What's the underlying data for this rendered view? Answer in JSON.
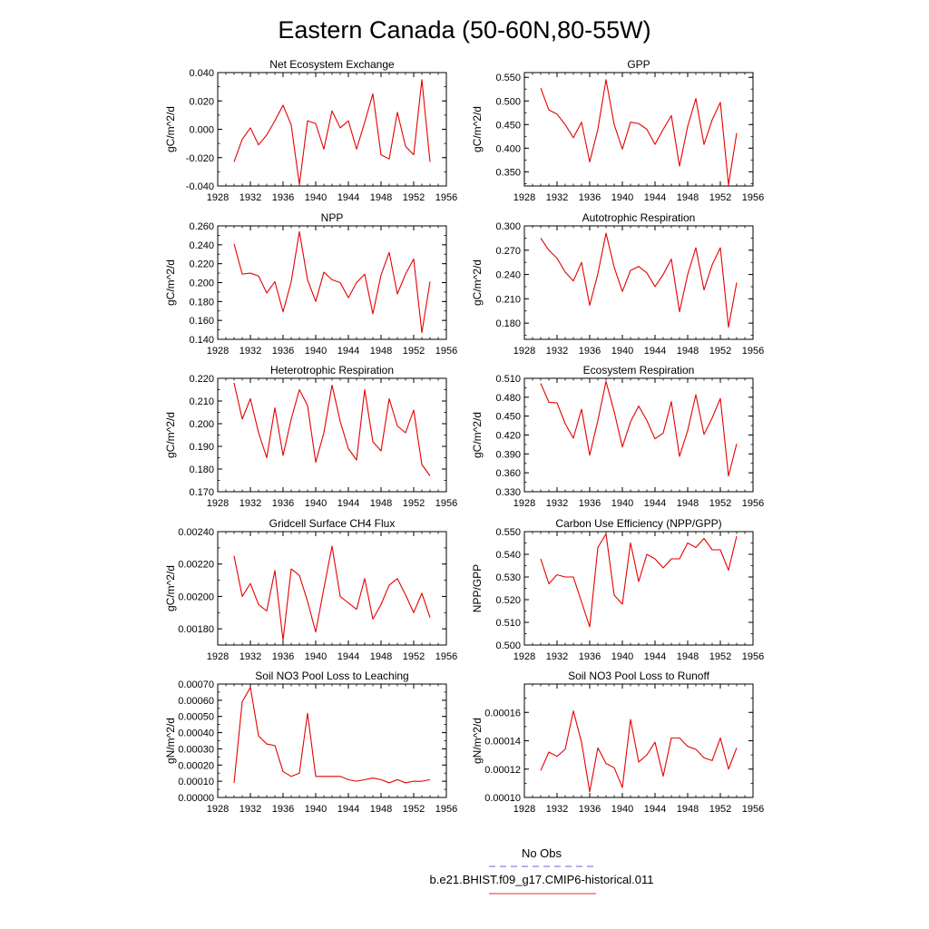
{
  "title": "Eastern Canada (50-60N,80-55W)",
  "legend": {
    "entries": [
      {
        "label": "No Obs",
        "color": "#6666dd",
        "style": "dashed"
      },
      {
        "label": "b.e21.BHIST.f09_g17.CMIP6-historical.011",
        "color": "#e03030",
        "style": "solid"
      }
    ]
  },
  "chart_data": [
    {
      "type": "line",
      "title": "Net Ecosystem Exchange",
      "ylabel": "gC/m^2/d",
      "xlabel": "",
      "xlim": [
        1928,
        1956
      ],
      "xticks": [
        "1928",
        "1932",
        "1936",
        "1940",
        "1944",
        "1948",
        "1952",
        "1956"
      ],
      "ylim": [
        -0.04,
        0.04
      ],
      "yticks": [
        "-0.040",
        "-0.020",
        "0.000",
        "0.020",
        "0.040"
      ],
      "color": "#e60000",
      "x": [
        1930,
        1931,
        1932,
        1933,
        1934,
        1935,
        1936,
        1937,
        1938,
        1939,
        1940,
        1941,
        1942,
        1943,
        1944,
        1945,
        1946,
        1947,
        1948,
        1949,
        1950,
        1951,
        1952,
        1953,
        1954
      ],
      "y": [
        -0.023,
        -0.007,
        0.001,
        -0.011,
        -0.004,
        0.006,
        0.017,
        0.003,
        -0.039,
        0.006,
        0.004,
        -0.014,
        0.013,
        0.001,
        0.006,
        -0.014,
        0.005,
        0.025,
        -0.018,
        -0.021,
        0.012,
        -0.012,
        -0.018,
        0.035,
        -0.023
      ]
    },
    {
      "type": "line",
      "title": "GPP",
      "ylabel": "gC/m^2/d",
      "xlabel": "",
      "xlim": [
        1928,
        1956
      ],
      "xticks": [
        "1928",
        "1932",
        "1936",
        "1940",
        "1944",
        "1948",
        "1952",
        "1956"
      ],
      "ylim": [
        0.32,
        0.56
      ],
      "yticks": [
        "0.350",
        "0.400",
        "0.450",
        "0.500",
        "0.550"
      ],
      "color": "#e60000",
      "x": [
        1930,
        1931,
        1932,
        1933,
        1934,
        1935,
        1936,
        1937,
        1938,
        1939,
        1940,
        1941,
        1942,
        1943,
        1944,
        1945,
        1946,
        1947,
        1948,
        1949,
        1950,
        1951,
        1952,
        1953,
        1954
      ],
      "y": [
        0.527,
        0.481,
        0.472,
        0.45,
        0.422,
        0.455,
        0.371,
        0.44,
        0.545,
        0.45,
        0.398,
        0.455,
        0.452,
        0.44,
        0.408,
        0.44,
        0.469,
        0.362,
        0.446,
        0.505,
        0.408,
        0.46,
        0.497,
        0.322,
        0.432
      ]
    },
    {
      "type": "line",
      "title": "NPP",
      "ylabel": "gC/m^2/d",
      "xlabel": "",
      "xlim": [
        1928,
        1956
      ],
      "xticks": [
        "1928",
        "1932",
        "1936",
        "1940",
        "1944",
        "1948",
        "1952",
        "1956"
      ],
      "ylim": [
        0.14,
        0.26
      ],
      "yticks": [
        "0.140",
        "0.160",
        "0.180",
        "0.200",
        "0.220",
        "0.240",
        "0.260"
      ],
      "color": "#e60000",
      "x": [
        1930,
        1931,
        1932,
        1933,
        1934,
        1935,
        1936,
        1937,
        1938,
        1939,
        1940,
        1941,
        1942,
        1943,
        1944,
        1945,
        1946,
        1947,
        1948,
        1949,
        1950,
        1951,
        1952,
        1953,
        1954
      ],
      "y": [
        0.241,
        0.209,
        0.21,
        0.207,
        0.189,
        0.201,
        0.169,
        0.201,
        0.254,
        0.203,
        0.18,
        0.211,
        0.203,
        0.2,
        0.184,
        0.2,
        0.209,
        0.167,
        0.208,
        0.232,
        0.188,
        0.209,
        0.225,
        0.147,
        0.201
      ]
    },
    {
      "type": "line",
      "title": "Autotrophic Respiration",
      "ylabel": "gC/m^2/d",
      "xlabel": "",
      "xlim": [
        1928,
        1956
      ],
      "xticks": [
        "1928",
        "1932",
        "1936",
        "1940",
        "1944",
        "1948",
        "1952",
        "1956"
      ],
      "ylim": [
        0.16,
        0.3
      ],
      "yticks": [
        "0.180",
        "0.210",
        "0.240",
        "0.270",
        "0.300"
      ],
      "color": "#e60000",
      "x": [
        1930,
        1931,
        1932,
        1933,
        1934,
        1935,
        1936,
        1937,
        1938,
        1939,
        1940,
        1941,
        1942,
        1943,
        1944,
        1945,
        1946,
        1947,
        1948,
        1949,
        1950,
        1951,
        1952,
        1953,
        1954
      ],
      "y": [
        0.285,
        0.27,
        0.26,
        0.243,
        0.232,
        0.255,
        0.202,
        0.241,
        0.291,
        0.249,
        0.219,
        0.245,
        0.25,
        0.242,
        0.225,
        0.24,
        0.259,
        0.194,
        0.24,
        0.273,
        0.221,
        0.252,
        0.273,
        0.175,
        0.23
      ]
    },
    {
      "type": "line",
      "title": "Heterotrophic Respiration",
      "ylabel": "gC/m^2/d",
      "xlabel": "",
      "xlim": [
        1928,
        1956
      ],
      "xticks": [
        "1928",
        "1932",
        "1936",
        "1940",
        "1944",
        "1948",
        "1952",
        "1956"
      ],
      "ylim": [
        0.17,
        0.22
      ],
      "yticks": [
        "0.170",
        "0.180",
        "0.190",
        "0.200",
        "0.210",
        "0.220"
      ],
      "color": "#e60000",
      "x": [
        1930,
        1931,
        1932,
        1933,
        1934,
        1935,
        1936,
        1937,
        1938,
        1939,
        1940,
        1941,
        1942,
        1943,
        1944,
        1945,
        1946,
        1947,
        1948,
        1949,
        1950,
        1951,
        1952,
        1953,
        1954
      ],
      "y": [
        0.218,
        0.202,
        0.211,
        0.196,
        0.185,
        0.207,
        0.186,
        0.202,
        0.215,
        0.208,
        0.183,
        0.196,
        0.217,
        0.201,
        0.189,
        0.184,
        0.215,
        0.192,
        0.188,
        0.211,
        0.199,
        0.196,
        0.206,
        0.182,
        0.177
      ]
    },
    {
      "type": "line",
      "title": "Ecosystem Respiration",
      "ylabel": "gC/m^2/d",
      "xlabel": "",
      "xlim": [
        1928,
        1956
      ],
      "xticks": [
        "1928",
        "1932",
        "1936",
        "1940",
        "1944",
        "1948",
        "1952",
        "1956"
      ],
      "ylim": [
        0.33,
        0.51
      ],
      "yticks": [
        "0.330",
        "0.360",
        "0.390",
        "0.420",
        "0.450",
        "0.480",
        "0.510"
      ],
      "color": "#e60000",
      "x": [
        1930,
        1931,
        1932,
        1933,
        1934,
        1935,
        1936,
        1937,
        1938,
        1939,
        1940,
        1941,
        1942,
        1943,
        1944,
        1945,
        1946,
        1947,
        1948,
        1949,
        1950,
        1951,
        1952,
        1953,
        1954
      ],
      "y": [
        0.502,
        0.472,
        0.471,
        0.438,
        0.415,
        0.461,
        0.388,
        0.443,
        0.505,
        0.457,
        0.401,
        0.441,
        0.466,
        0.443,
        0.414,
        0.423,
        0.473,
        0.386,
        0.427,
        0.484,
        0.421,
        0.447,
        0.478,
        0.355,
        0.406
      ]
    },
    {
      "type": "line",
      "title": "Gridcell Surface CH4 Flux",
      "ylabel": "gC/m^2/d",
      "xlabel": "",
      "xlim": [
        1928,
        1956
      ],
      "xticks": [
        "1928",
        "1932",
        "1936",
        "1940",
        "1944",
        "1948",
        "1952",
        "1956"
      ],
      "ylim": [
        0.0017,
        0.0024
      ],
      "yticks": [
        "0.00180",
        "0.00200",
        "0.00220",
        "0.00240"
      ],
      "color": "#e60000",
      "x": [
        1930,
        1931,
        1932,
        1933,
        1934,
        1935,
        1936,
        1937,
        1938,
        1939,
        1940,
        1941,
        1942,
        1943,
        1944,
        1945,
        1946,
        1947,
        1948,
        1949,
        1950,
        1951,
        1952,
        1953,
        1954
      ],
      "y": [
        0.00225,
        0.002,
        0.00208,
        0.00195,
        0.00191,
        0.00216,
        0.00173,
        0.00217,
        0.00213,
        0.00197,
        0.00178,
        0.00205,
        0.00231,
        0.002,
        0.00196,
        0.00192,
        0.00211,
        0.00186,
        0.00195,
        0.00207,
        0.00211,
        0.00201,
        0.0019,
        0.00202,
        0.00187
      ]
    },
    {
      "type": "line",
      "title": "Carbon Use Efficiency (NPP/GPP)",
      "ylabel": "NPP/GPP",
      "xlabel": "",
      "xlim": [
        1928,
        1956
      ],
      "xticks": [
        "1928",
        "1932",
        "1936",
        "1940",
        "1944",
        "1948",
        "1952",
        "1956"
      ],
      "ylim": [
        0.5,
        0.55
      ],
      "yticks": [
        "0.500",
        "0.510",
        "0.520",
        "0.530",
        "0.540",
        "0.550"
      ],
      "color": "#e60000",
      "x": [
        1930,
        1931,
        1932,
        1933,
        1934,
        1935,
        1936,
        1937,
        1938,
        1939,
        1940,
        1941,
        1942,
        1943,
        1944,
        1945,
        1946,
        1947,
        1948,
        1949,
        1950,
        1951,
        1952,
        1953,
        1954
      ],
      "y": [
        0.538,
        0.527,
        0.531,
        0.53,
        0.53,
        0.519,
        0.508,
        0.543,
        0.549,
        0.522,
        0.518,
        0.545,
        0.528,
        0.54,
        0.538,
        0.534,
        0.538,
        0.538,
        0.545,
        0.543,
        0.547,
        0.542,
        0.542,
        0.533,
        0.548
      ]
    },
    {
      "type": "line",
      "title": "Soil NO3 Pool Loss to Leaching",
      "ylabel": "gN/m^2/d",
      "xlabel": "",
      "xlim": [
        1928,
        1956
      ],
      "xticks": [
        "1928",
        "1932",
        "1936",
        "1940",
        "1944",
        "1948",
        "1952",
        "1956"
      ],
      "ylim": [
        0,
        0.0007
      ],
      "yticks": [
        "0.00000",
        "0.00010",
        "0.00020",
        "0.00030",
        "0.00040",
        "0.00050",
        "0.00060",
        "0.00070"
      ],
      "color": "#e60000",
      "x": [
        1930,
        1931,
        1932,
        1933,
        1934,
        1935,
        1936,
        1937,
        1938,
        1939,
        1940,
        1941,
        1942,
        1943,
        1944,
        1945,
        1946,
        1947,
        1948,
        1949,
        1950,
        1951,
        1952,
        1953,
        1954
      ],
      "y": [
        9e-05,
        0.00059,
        0.00068,
        0.00038,
        0.00033,
        0.00032,
        0.00016,
        0.00013,
        0.00015,
        0.00052,
        0.00013,
        0.00013,
        0.00013,
        0.00013,
        0.00011,
        0.0001,
        0.00011,
        0.00012,
        0.00011,
        9e-05,
        0.00011,
        9e-05,
        0.0001,
        0.0001,
        0.00011
      ]
    },
    {
      "type": "line",
      "title": "Soil NO3 Pool Loss to Runoff",
      "ylabel": "gN/m^2/d",
      "xlabel": "",
      "xlim": [
        1928,
        1956
      ],
      "xticks": [
        "1928",
        "1932",
        "1936",
        "1940",
        "1944",
        "1948",
        "1952",
        "1956"
      ],
      "ylim": [
        0.0001,
        0.00018
      ],
      "yticks": [
        "0.00010",
        "0.00012",
        "0.00014",
        "0.00016"
      ],
      "color": "#e60000",
      "x": [
        1930,
        1931,
        1932,
        1933,
        1934,
        1935,
        1936,
        1937,
        1938,
        1939,
        1940,
        1941,
        1942,
        1943,
        1944,
        1945,
        1946,
        1947,
        1948,
        1949,
        1950,
        1951,
        1952,
        1953,
        1954
      ],
      "y": [
        0.000119,
        0.000132,
        0.000129,
        0.000134,
        0.000161,
        0.000139,
        0.000104,
        0.000135,
        0.000124,
        0.000121,
        0.000107,
        0.000155,
        0.000125,
        0.00013,
        0.000139,
        0.000115,
        0.000142,
        0.000142,
        0.000136,
        0.000134,
        0.000128,
        0.000126,
        0.000142,
        0.00012,
        0.000135
      ]
    }
  ]
}
